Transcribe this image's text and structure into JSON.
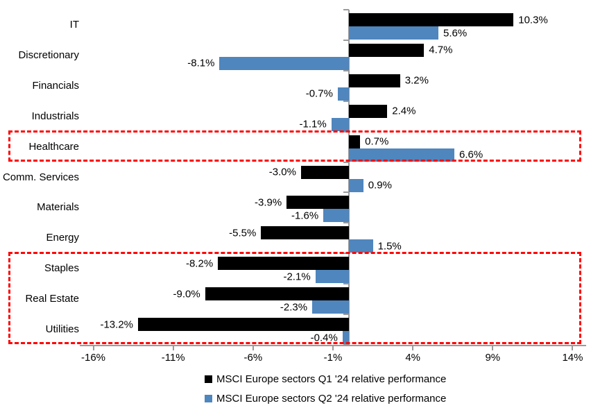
{
  "chart_data": {
    "type": "bar",
    "orientation": "horizontal",
    "title": "",
    "categories": [
      "IT",
      "Discretionary",
      "Financials",
      "Industrials",
      "Healthcare",
      "Comm. Services",
      "Materials",
      "Energy",
      "Staples",
      "Real Estate",
      "Utilities"
    ],
    "series": [
      {
        "name": "MSCI Europe sectors Q1 '24 relative performance",
        "color": "#000000",
        "values": [
          10.3,
          4.7,
          3.2,
          2.4,
          0.7,
          -3.0,
          -3.9,
          -5.5,
          -8.2,
          -9.0,
          -13.2
        ],
        "labels": [
          "10.3%",
          "4.7%",
          "3.2%",
          "2.4%",
          "0.7%",
          "-3.0%",
          "-3.9%",
          "-5.5%",
          "-8.2%",
          "-9.0%",
          "-13.2%"
        ]
      },
      {
        "name": "MSCI Europe sectors Q2 '24 relative performance",
        "color": "#4F86BD",
        "values": [
          5.6,
          -8.1,
          -0.7,
          -1.1,
          6.6,
          0.9,
          -1.6,
          1.5,
          -2.1,
          -2.3,
          -0.4
        ],
        "labels": [
          "5.6%",
          "-8.1%",
          "-0.7%",
          "-1.1%",
          "6.6%",
          "0.9%",
          "-1.6%",
          "1.5%",
          "-2.1%",
          "-2.3%",
          "-0.4%"
        ]
      }
    ],
    "x_ticks": [
      {
        "value": -16,
        "label": "-16%"
      },
      {
        "value": -11,
        "label": "-11%"
      },
      {
        "value": -6,
        "label": "-6%"
      },
      {
        "value": -1,
        "label": "-1%"
      },
      {
        "value": 4,
        "label": "4%"
      },
      {
        "value": 9,
        "label": "9%"
      },
      {
        "value": 14,
        "label": "14%"
      }
    ],
    "xlim": [
      -16.5,
      14.5
    ],
    "xlabel": "",
    "ylabel": "",
    "grid": "off",
    "legend_position": "bottom-center",
    "axis_color": "#9a9a9a",
    "text_color": "#000000",
    "highlight_boxes": [
      {
        "categories": [
          "Healthcare"
        ],
        "color": "#FF0000",
        "style": "dashed"
      },
      {
        "categories": [
          "Staples",
          "Real Estate",
          "Utilities"
        ],
        "color": "#FF0000",
        "style": "dashed"
      }
    ]
  }
}
